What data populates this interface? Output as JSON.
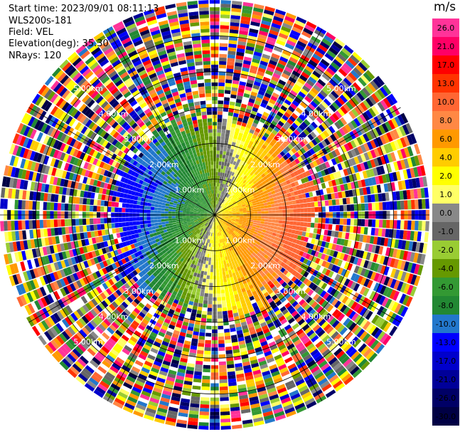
{
  "header": {
    "start_time": "Start time: 2023/09/01 08:11:13",
    "instrument": "WLS200s-181",
    "field": "Field: VEL",
    "elevation": "Elevation(deg): 35.30",
    "nrays": "NRays: 120"
  },
  "colorbar": {
    "unit": "m/s",
    "labels": [
      "26.0",
      "21.0",
      "17.0",
      "13.0",
      "10.0",
      "8.0",
      "6.0",
      "4.0",
      "2.0",
      "1.0",
      "0.0",
      "-1.0",
      "-2.0",
      "-4.0",
      "-6.0",
      "-8.0",
      "-10.0",
      "-13.0",
      "-17.0",
      "-21.0",
      "-26.0",
      "-30.0"
    ],
    "colors": [
      "#ff3399",
      "#ff0066",
      "#ff0000",
      "#ff3300",
      "#ff6633",
      "#ff8844",
      "#ff9900",
      "#ffcc00",
      "#ffff00",
      "#ffff66",
      "#888888",
      "#666666",
      "#99cc33",
      "#669900",
      "#339933",
      "#228833",
      "#2277cc",
      "#0000ff",
      "#0000cc",
      "#000099",
      "#000066",
      "#000044"
    ]
  },
  "chart_data": {
    "type": "heatmap",
    "projection": "polar-ppi",
    "nrays": 120,
    "max_range_km": 6.0,
    "range_rings_km": [
      1.0,
      2.0,
      3.0,
      4.0,
      5.0
    ],
    "ring_labels": [
      "1.00km",
      "2.00km",
      "3.00km",
      "4.00km",
      "5.00km"
    ],
    "azimuth_lines_deg": [
      0,
      30,
      60,
      90,
      120,
      150,
      180,
      210,
      240,
      270,
      300,
      330
    ],
    "clear_signal_range_km": 2.7,
    "dominant_wind_from_deg": 300,
    "approx_max_velocity_ms": 13.0,
    "clim": [
      -30.0,
      30.0
    ]
  }
}
